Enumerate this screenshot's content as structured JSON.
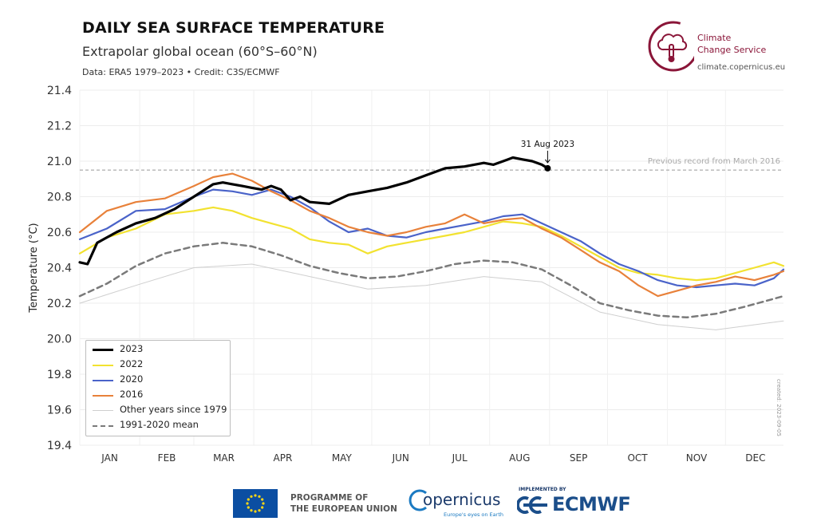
{
  "header": {
    "title": "DAILY SEA SURFACE TEMPERATURE",
    "subtitle": "Extrapolar global ocean (60°S–60°N)",
    "source": "Data: ERA5 1979–2023 • Credit: C3S/ECMWF"
  },
  "brand": {
    "name_line1": "Climate",
    "name_line2": "Change Service",
    "url": "climate.copernicus.eu"
  },
  "footer": {
    "eu_line1": "PROGRAMME OF",
    "eu_line2": "THE EUROPEAN UNION",
    "copernicus": "opernicus",
    "copernicus_sub": "Europe's eyes on Earth",
    "implemented_by": "IMPLEMENTED BY",
    "ecmwf": "ECMWF"
  },
  "created_note": "created: 2023-09-05",
  "colors": {
    "y2023": "#000000",
    "y2022": "#f2e230",
    "y2020": "#4a63c9",
    "y2016": "#e8813a",
    "other": "#cfcfcf",
    "mean": "#7a7a7a",
    "brand": "#8a1538"
  },
  "chart_data": {
    "type": "line",
    "ylabel": "Temperature (°C)",
    "ylim": [
      19.4,
      21.4
    ],
    "yticks": [
      19.4,
      19.6,
      19.8,
      20.0,
      20.2,
      20.4,
      20.6,
      20.8,
      21.0,
      21.2,
      21.4
    ],
    "months": [
      "JAN",
      "FEB",
      "MAR",
      "APR",
      "MAY",
      "JUN",
      "JUL",
      "AUG",
      "SEP",
      "OCT",
      "NOV",
      "DEC"
    ],
    "x_unit": "day of year",
    "xlim": [
      1,
      365
    ],
    "grid": true,
    "legend_position": "bottom-left",
    "reference_line": {
      "value": 20.95,
      "label": "Previous record from March 2016"
    },
    "annotation": {
      "text": "31 Aug 2023",
      "x": 243,
      "y": 20.96
    },
    "series": [
      {
        "name": "2023",
        "style": "thick",
        "x": [
          1,
          5,
          10,
          20,
          30,
          40,
          50,
          60,
          70,
          75,
          80,
          85,
          90,
          95,
          100,
          105,
          110,
          115,
          120,
          130,
          140,
          150,
          160,
          170,
          180,
          190,
          200,
          210,
          215,
          220,
          225,
          230,
          235,
          240,
          243
        ],
        "y": [
          20.43,
          20.42,
          20.54,
          20.6,
          20.65,
          20.68,
          20.73,
          20.8,
          20.87,
          20.88,
          20.87,
          20.86,
          20.85,
          20.84,
          20.86,
          20.84,
          20.78,
          20.8,
          20.77,
          20.76,
          20.81,
          20.83,
          20.85,
          20.88,
          20.92,
          20.96,
          20.97,
          20.99,
          20.98,
          21.0,
          21.02,
          21.01,
          21.0,
          20.98,
          20.96
        ]
      },
      {
        "name": "2022",
        "x": [
          1,
          15,
          30,
          45,
          60,
          70,
          80,
          90,
          100,
          110,
          120,
          130,
          140,
          150,
          160,
          170,
          180,
          190,
          200,
          210,
          220,
          230,
          240,
          250,
          260,
          270,
          280,
          290,
          300,
          310,
          320,
          330,
          340,
          350,
          360,
          365
        ],
        "y": [
          20.48,
          20.57,
          20.62,
          20.7,
          20.72,
          20.74,
          20.72,
          20.68,
          20.65,
          20.62,
          20.56,
          20.54,
          20.53,
          20.48,
          20.52,
          20.54,
          20.56,
          20.58,
          20.6,
          20.63,
          20.66,
          20.65,
          20.63,
          20.58,
          20.52,
          20.46,
          20.4,
          20.37,
          20.36,
          20.34,
          20.33,
          20.34,
          20.37,
          20.4,
          20.43,
          20.41
        ]
      },
      {
        "name": "2020",
        "x": [
          1,
          15,
          30,
          45,
          60,
          70,
          80,
          90,
          100,
          110,
          120,
          130,
          140,
          150,
          160,
          170,
          180,
          190,
          200,
          210,
          220,
          230,
          240,
          250,
          260,
          270,
          280,
          290,
          300,
          310,
          320,
          330,
          340,
          350,
          360,
          365
        ],
        "y": [
          20.56,
          20.62,
          20.72,
          20.73,
          20.8,
          20.84,
          20.83,
          20.81,
          20.84,
          20.8,
          20.74,
          20.66,
          20.6,
          20.62,
          20.58,
          20.57,
          20.6,
          20.62,
          20.64,
          20.66,
          20.69,
          20.7,
          20.65,
          20.6,
          20.55,
          20.48,
          20.42,
          20.38,
          20.33,
          20.3,
          20.29,
          20.3,
          20.31,
          20.3,
          20.34,
          20.39
        ]
      },
      {
        "name": "2016",
        "x": [
          1,
          15,
          30,
          45,
          60,
          70,
          80,
          90,
          100,
          110,
          120,
          130,
          140,
          150,
          160,
          170,
          180,
          190,
          200,
          210,
          220,
          230,
          240,
          250,
          260,
          270,
          280,
          290,
          300,
          310,
          320,
          330,
          340,
          350,
          360,
          365
        ],
        "y": [
          20.6,
          20.72,
          20.77,
          20.79,
          20.86,
          20.91,
          20.93,
          20.89,
          20.83,
          20.78,
          20.72,
          20.68,
          20.63,
          20.6,
          20.58,
          20.6,
          20.63,
          20.65,
          20.7,
          20.65,
          20.67,
          20.68,
          20.62,
          20.57,
          20.5,
          20.43,
          20.38,
          20.3,
          20.24,
          20.27,
          20.3,
          20.32,
          20.35,
          20.33,
          20.36,
          20.38
        ]
      },
      {
        "name": "1991-2020 mean",
        "style": "dashed",
        "x": [
          1,
          15,
          30,
          45,
          60,
          75,
          90,
          105,
          120,
          135,
          150,
          165,
          180,
          195,
          210,
          225,
          240,
          255,
          270,
          285,
          300,
          315,
          330,
          345,
          355,
          365
        ],
        "y": [
          20.24,
          20.31,
          20.41,
          20.48,
          20.52,
          20.54,
          20.52,
          20.47,
          20.41,
          20.37,
          20.34,
          20.35,
          20.38,
          20.42,
          20.44,
          20.43,
          20.39,
          20.3,
          20.2,
          20.16,
          20.13,
          20.12,
          20.14,
          20.18,
          20.21,
          20.24
        ]
      },
      {
        "name": "Other years since 1979",
        "style": "thin",
        "x": [
          1,
          30,
          60,
          90,
          120,
          150,
          180,
          210,
          240,
          270,
          300,
          330,
          365
        ],
        "y": [
          20.2,
          20.3,
          20.4,
          20.42,
          20.35,
          20.28,
          20.3,
          20.35,
          20.32,
          20.15,
          20.08,
          20.05,
          20.1
        ]
      }
    ],
    "legend": [
      "2023",
      "2022",
      "2020",
      "2016",
      "Other years since 1979",
      "1991-2020 mean"
    ]
  }
}
